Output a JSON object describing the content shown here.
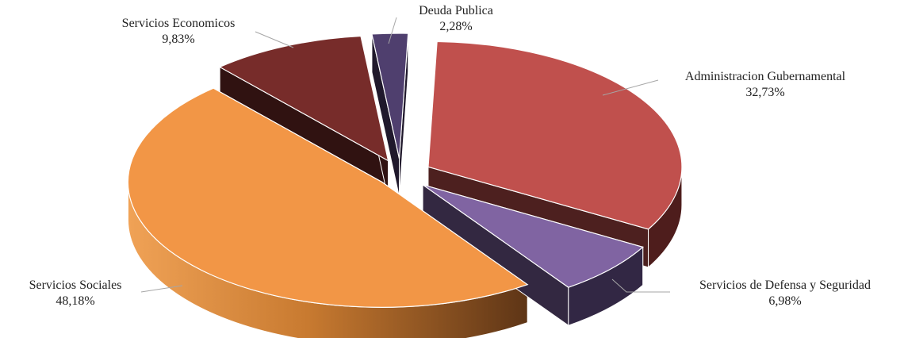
{
  "chart_data": {
    "type": "pie",
    "title": "",
    "slices": [
      {
        "label": "Administracion Gubernamental",
        "value": 32.73,
        "display": "32,73%",
        "color": "#C0504D"
      },
      {
        "label": "Servicios de Defensa y Seguridad",
        "value": 6.98,
        "display": "6,98%",
        "color": "#8064A2"
      },
      {
        "label": "Servicios Sociales",
        "value": 48.18,
        "display": "48,18%",
        "color": "#F29646"
      },
      {
        "label": "Servicios Economicos",
        "value": 9.83,
        "display": "9,83%",
        "color": "#772C2A"
      },
      {
        "label": "Deuda Publica",
        "value": 2.28,
        "display": "2,28%",
        "color": "#4F3F6E"
      }
    ],
    "legend": "none",
    "style": "3d-exploded"
  }
}
